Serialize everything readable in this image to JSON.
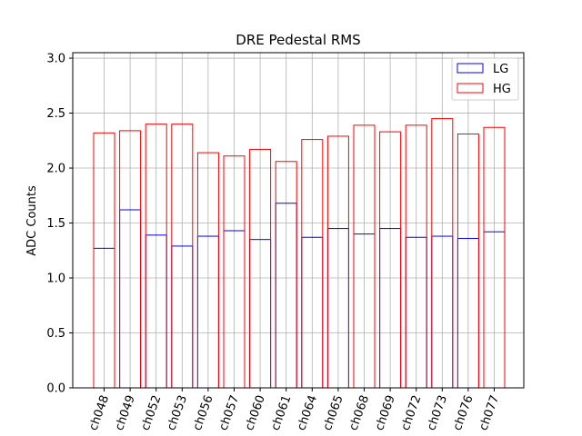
{
  "chart_data": {
    "type": "bar",
    "title": "DRE Pedestal RMS",
    "xlabel": "",
    "ylabel": "ADC Counts",
    "ylim": [
      0.0,
      3.05
    ],
    "yticks": [
      "0.0",
      "0.5",
      "1.0",
      "1.5",
      "2.0",
      "2.5",
      "3.0"
    ],
    "grid": true,
    "legend_position": "top-right",
    "categories": [
      "ch048",
      "ch049",
      "ch052",
      "ch053",
      "ch056",
      "ch057",
      "ch060",
      "ch061",
      "ch064",
      "ch065",
      "ch068",
      "ch069",
      "ch072",
      "ch073",
      "ch076",
      "ch077"
    ],
    "series": [
      {
        "name": "LG",
        "color": "#0000ff",
        "values": [
          1.27,
          1.62,
          1.39,
          1.29,
          1.38,
          1.43,
          1.35,
          1.68,
          1.37,
          1.45,
          1.4,
          1.45,
          1.37,
          1.38,
          1.36,
          1.42
        ]
      },
      {
        "name": "HG",
        "color": "#ff0000",
        "values": [
          2.32,
          2.34,
          2.4,
          2.4,
          2.14,
          2.11,
          2.17,
          2.06,
          2.26,
          2.29,
          2.39,
          2.33,
          2.39,
          2.45,
          2.31,
          2.37
        ]
      }
    ]
  }
}
